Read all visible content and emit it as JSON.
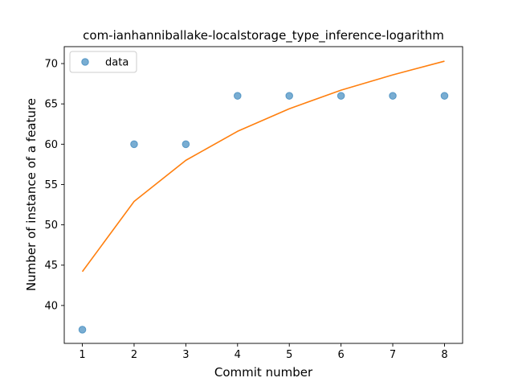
{
  "chart_data": {
    "type": "scatter",
    "title": "com-ianhanniballake-localstorage_type_inference-logarithm",
    "xlabel": "Commit number",
    "ylabel": "Number of instance of a feature",
    "xlim": [
      0.65,
      8.35
    ],
    "ylim": [
      35.3,
      72.1
    ],
    "x_ticks": [
      1,
      2,
      3,
      4,
      5,
      6,
      7,
      8
    ],
    "y_ticks": [
      40,
      45,
      50,
      55,
      60,
      65,
      70
    ],
    "grid": false,
    "legend_position": "top-left",
    "series": [
      {
        "name": "data",
        "kind": "scatter",
        "color": "#1f77b4",
        "x": [
          1,
          2,
          3,
          4,
          5,
          6,
          7,
          8
        ],
        "y": [
          37,
          60,
          60,
          66,
          66,
          66,
          66,
          66
        ]
      },
      {
        "kind": "line",
        "color": "#ff7f0e",
        "x": [
          1,
          2,
          3,
          4,
          5,
          6,
          7,
          8
        ],
        "y": [
          44.2,
          52.9,
          58.0,
          61.6,
          64.4,
          66.7,
          68.6,
          70.3
        ]
      }
    ]
  }
}
